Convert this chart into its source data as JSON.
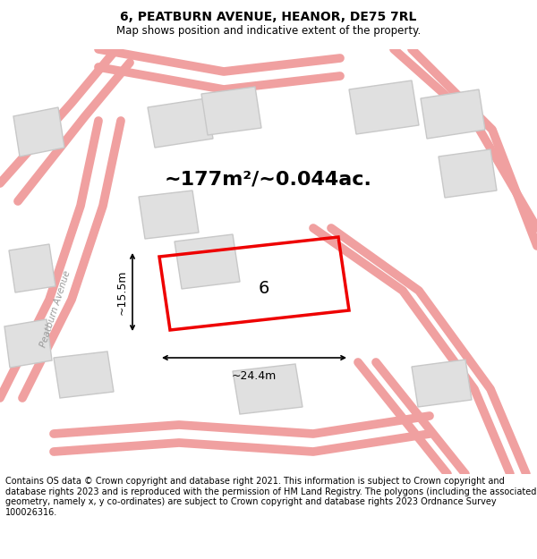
{
  "title": "6, PEATBURN AVENUE, HEANOR, DE75 7RL",
  "subtitle": "Map shows position and indicative extent of the property.",
  "area_text": "~177m²/~0.044ac.",
  "label_6": "6",
  "dim_width": "~24.4m",
  "dim_height": "~15.5m",
  "street_label": "Peatburn Avenue",
  "copyright_text": "Contains OS data © Crown copyright and database right 2021. This information is subject to Crown copyright and database rights 2023 and is reproduced with the permission of HM Land Registry. The polygons (including the associated geometry, namely x, y co-ordinates) are subject to Crown copyright and database rights 2023 Ordnance Survey 100026316.",
  "bg_color": "#ffffff",
  "map_bg": "#f5f5f5",
  "road_color": "#f0a0a0",
  "building_fill": "#e0e0e0",
  "building_edge": "#c8c8c8",
  "property_color": "#ee0000",
  "title_fontsize": 10,
  "subtitle_fontsize": 8.5,
  "area_fontsize": 16,
  "label_fontsize": 14,
  "dim_fontsize": 9,
  "street_fontsize": 7.5,
  "copyright_fontsize": 7
}
